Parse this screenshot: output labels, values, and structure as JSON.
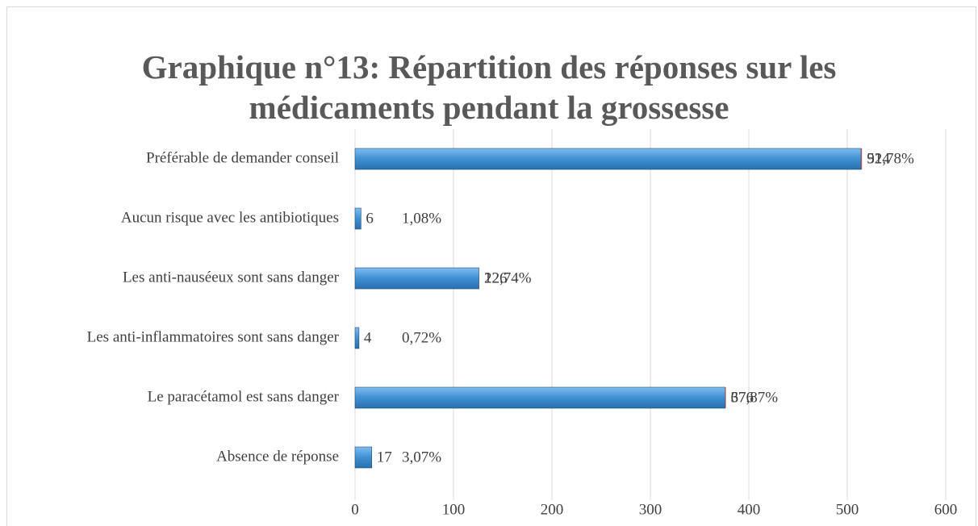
{
  "chart_data": {
    "type": "bar",
    "orientation": "horizontal",
    "title": "Graphique n°13: Répartition des réponses sur les médicaments pendant la grossesse",
    "categories": [
      "Préférable de demander conseil",
      "Aucun risque avec les antibiotiques",
      "Les anti-nauséeux sont sans danger",
      "Les anti-inflammatoires sont sans danger",
      "Le paracétamol est sans danger",
      "Absence de réponse"
    ],
    "series": [
      {
        "color": "#3f8fd2",
        "values": [
          514,
          6,
          126,
          4,
          376,
          17
        ]
      },
      {
        "color": "#c0504d",
        "values": [
          0.9278,
          0.0108,
          0.2274,
          0.0072,
          0.6787,
          0.0307
        ],
        "value_labels": [
          "92,78%",
          "1,08%",
          "22,74%",
          "0,72%",
          "67,87%",
          "3,07%"
        ]
      }
    ],
    "xlim": [
      0,
      600
    ],
    "xticks": [
      0,
      100,
      200,
      300,
      400,
      500,
      600
    ],
    "grid": true
  }
}
